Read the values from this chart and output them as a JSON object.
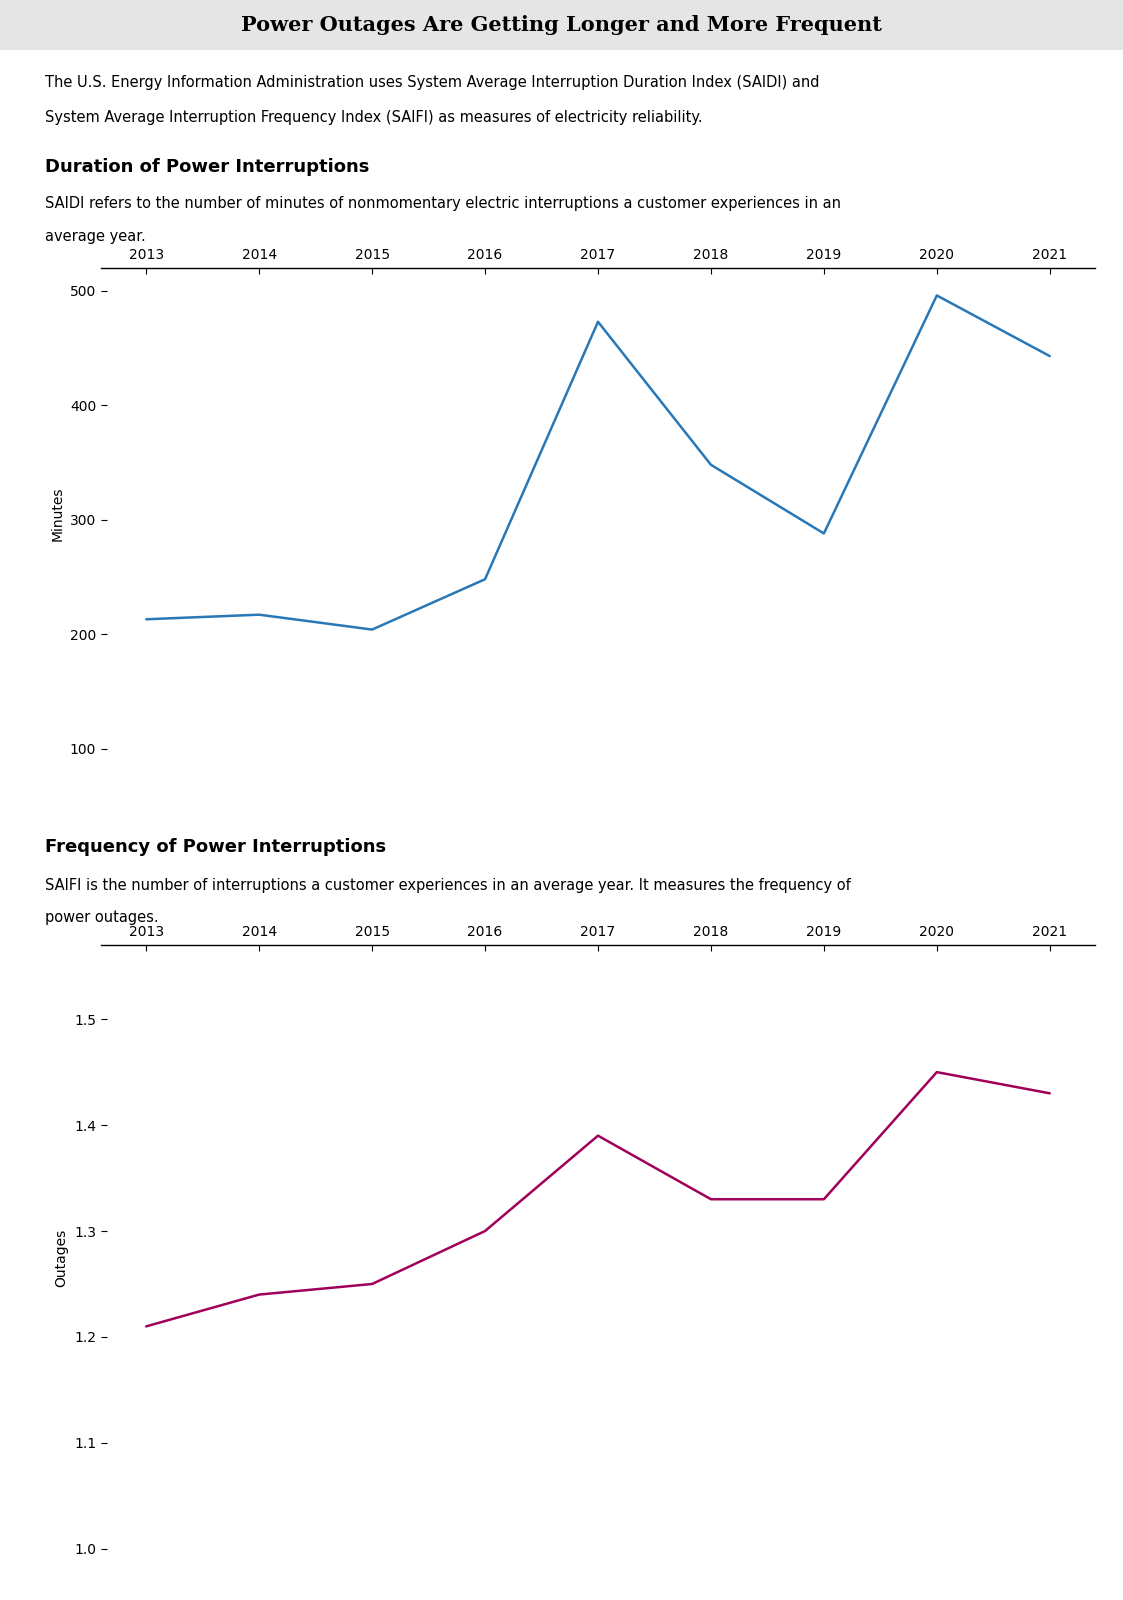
{
  "title": "Power Outages Are Getting Longer and More Frequent",
  "title_bg_color": "#e5e5e5",
  "intro_text_line1": "The U.S. Energy Information Administration uses System Average Interruption Duration Index (SAIDI) and",
  "intro_text_line2": "System Average Interruption Frequency Index (SAIFI) as measures of electricity reliability.",
  "chart1_title": "Duration of Power Interruptions",
  "chart1_subtitle_line1": "SAIDI refers to the number of minutes of nonmomentary electric interruptions a customer experiences in an",
  "chart1_subtitle_line2": "average year.",
  "chart1_ylabel": "Minutes",
  "chart1_years": [
    2013,
    2014,
    2015,
    2016,
    2017,
    2018,
    2019,
    2020,
    2021
  ],
  "chart1_values": [
    213,
    217,
    204,
    248,
    473,
    348,
    288,
    496,
    443
  ],
  "chart1_color": "#2878b8",
  "chart1_ylim": [
    90,
    520
  ],
  "chart1_yticks": [
    100,
    200,
    300,
    400,
    500
  ],
  "chart2_title": "Frequency of Power Interruptions",
  "chart2_subtitle_line1": "SAIFI is the number of interruptions a customer experiences in an average year. It measures the frequency of",
  "chart2_subtitle_line2": "power outages.",
  "chart2_ylabel": "Outages",
  "chart2_years": [
    2013,
    2014,
    2015,
    2016,
    2017,
    2018,
    2019,
    2020,
    2021
  ],
  "chart2_values": [
    1.21,
    1.24,
    1.25,
    1.3,
    1.39,
    1.33,
    1.33,
    1.45,
    1.43
  ],
  "chart2_color": "#a0005a",
  "chart2_ylim": [
    0.98,
    1.57
  ],
  "chart2_yticks": [
    1.0,
    1.1,
    1.2,
    1.3,
    1.4,
    1.5
  ],
  "fig_bg_color": "#ffffff",
  "text_color": "#000000"
}
